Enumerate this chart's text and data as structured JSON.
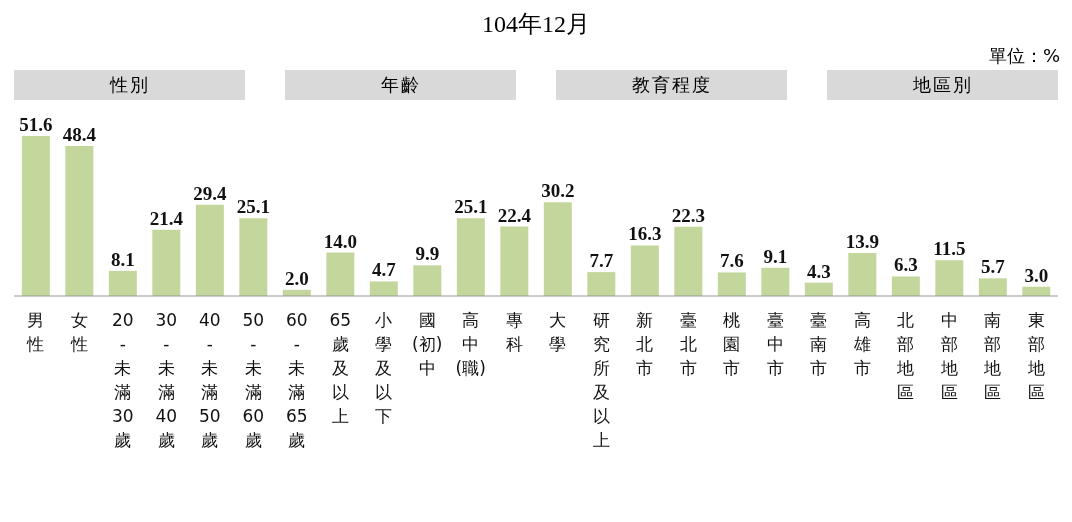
{
  "chart_data": {
    "type": "bar",
    "title": "104年12月",
    "categories": [
      "男性",
      "女性",
      "20-未滿30歲",
      "30-未滿40歲",
      "40-未滿50歲",
      "50-未滿60歲",
      "60-未滿65歲",
      "65歲及以上",
      "小學及以下",
      "國(初)中",
      "高中(職)",
      "專科",
      "大學",
      "研究所及以上",
      "新北市",
      "臺北市",
      "桃園市",
      "臺中市",
      "臺南市",
      "高雄市",
      "北部地區",
      "中部地區",
      "南部地區",
      "東部地區"
    ],
    "values": [
      51.6,
      48.4,
      8.1,
      21.4,
      29.4,
      25.1,
      2.0,
      14.0,
      4.7,
      9.9,
      25.1,
      22.4,
      30.2,
      7.7,
      16.3,
      22.3,
      7.6,
      9.1,
      4.3,
      13.9,
      6.3,
      11.5,
      5.7,
      3.0
    ],
    "value_labels": [
      "51.6",
      "48.4",
      "8.1",
      "21.4",
      "29.4",
      "25.1",
      "2.0",
      "14.0",
      "4.7",
      "9.9",
      "25.1",
      "22.4",
      "30.2",
      "7.7",
      "16.3",
      "22.3",
      "7.6",
      "9.1",
      "4.3",
      "13.9",
      "6.3",
      "11.5",
      "5.7",
      "3.0"
    ],
    "color": "#c3d69b",
    "annotations": [
      "單位：%",
      "性別",
      "年齡",
      "教育程度",
      "地區別"
    ]
  }
}
